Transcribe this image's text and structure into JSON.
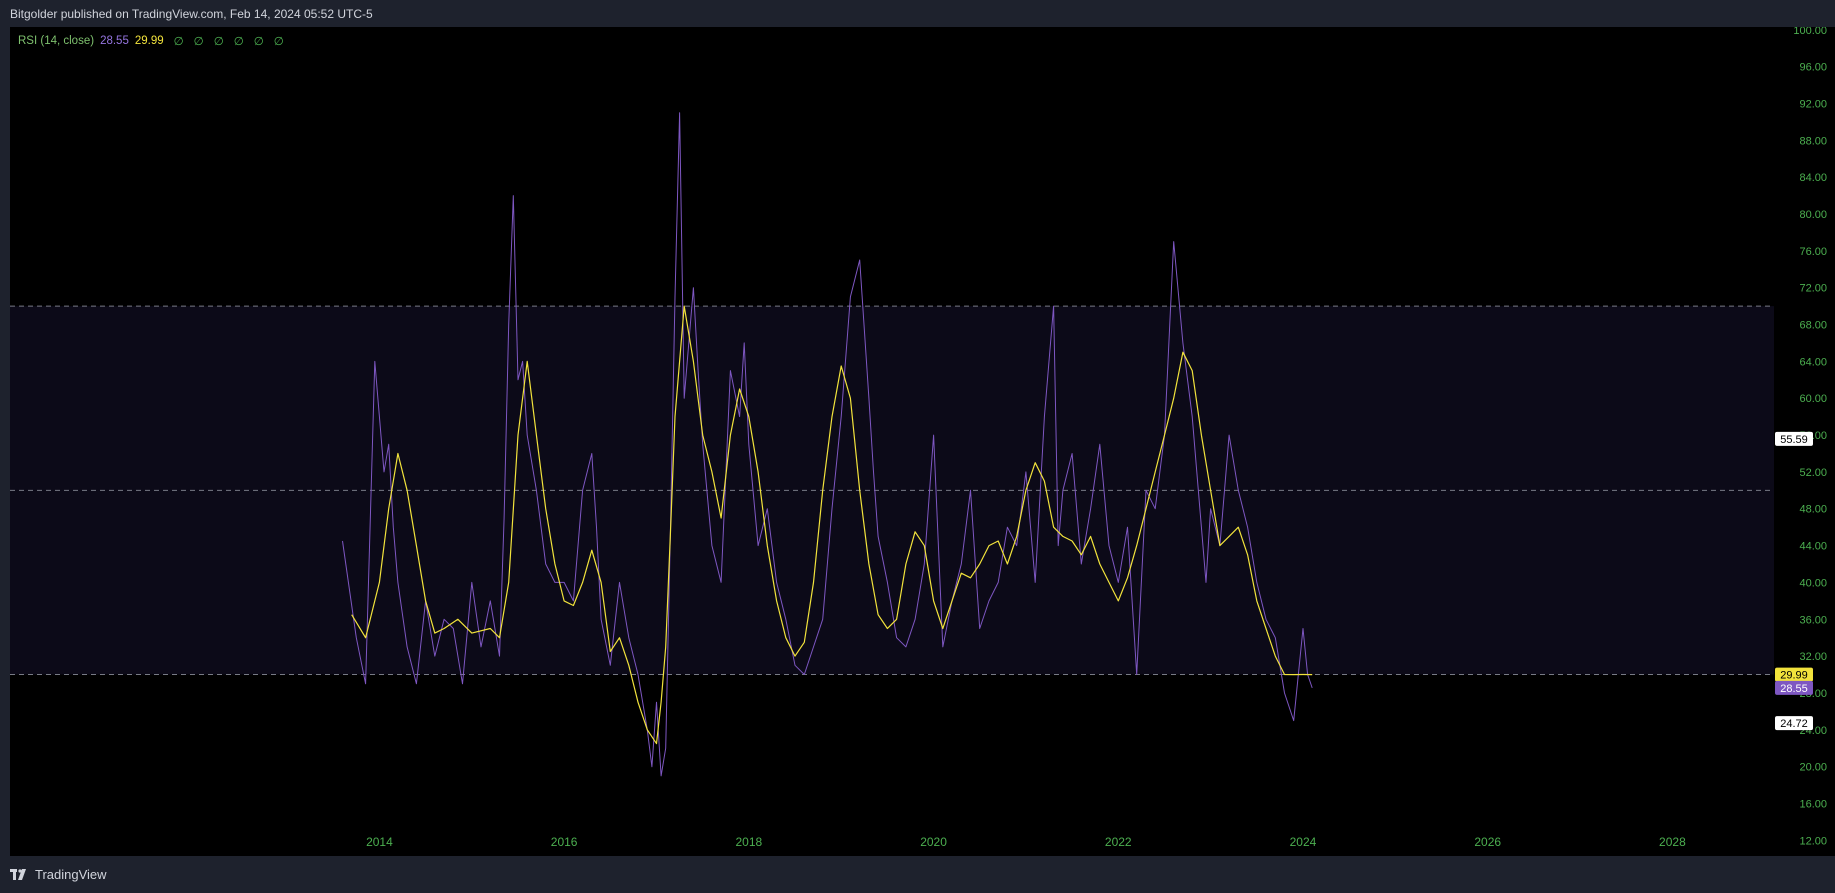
{
  "header": {
    "published_text": "Bitgolder published on TradingView.com, Feb 14, 2024 05:52 UTC-5"
  },
  "footer": {
    "brand": "TradingView"
  },
  "legend": {
    "indicator": "RSI (14, close)",
    "rsi_value": "28.55",
    "ma_value": "29.99",
    "na_markers": [
      "∅",
      "∅",
      "∅",
      "∅",
      "∅",
      "∅"
    ]
  },
  "colors": {
    "background": "#000000",
    "frame": "#1e222d",
    "rsi_line": "#7e57c2",
    "rsi_ma_line": "#f2e33c",
    "axis_text": "#4caf50",
    "band_fill": "#0c0a18",
    "level_line": "#787b86"
  },
  "price_labels": [
    {
      "text": "55.59",
      "value": 55.59,
      "bg": "#ffffff",
      "fg": "#000000"
    },
    {
      "text": "29.99",
      "value": 29.99,
      "bg": "#f2e33c",
      "fg": "#000000"
    },
    {
      "text": "28.55",
      "value": 28.55,
      "bg": "#7e57c2",
      "fg": "#ffffff"
    },
    {
      "text": "24.72",
      "value": 24.72,
      "bg": "#ffffff",
      "fg": "#000000"
    }
  ],
  "chart_data": {
    "type": "line",
    "title": "",
    "xlabel": "",
    "ylabel": "",
    "x_ticks": [
      "2014",
      "2016",
      "2018",
      "2020",
      "2022",
      "2024",
      "2026",
      "2028"
    ],
    "y_ticks": [
      "12.00",
      "16.00",
      "20.00",
      "24.00",
      "28.00",
      "32.00",
      "36.00",
      "40.00",
      "44.00",
      "48.00",
      "52.00",
      "56.00",
      "60.00",
      "64.00",
      "68.00",
      "72.00",
      "76.00",
      "80.00",
      "84.00",
      "88.00",
      "92.00",
      "96.00",
      "100.00"
    ],
    "xlim": [
      2010.0,
      2029.1
    ],
    "ylim": [
      10.3,
      100.3
    ],
    "levels": [
      70,
      50,
      30
    ],
    "band": [
      30,
      70
    ],
    "grid": false,
    "series": [
      {
        "key": "rsi",
        "x": [
          2013.6,
          2013.75,
          2013.85,
          2013.95,
          2014.0,
          2014.05,
          2014.1,
          2014.15,
          2014.2,
          2014.3,
          2014.4,
          2014.5,
          2014.6,
          2014.7,
          2014.8,
          2014.9,
          2015.0,
          2015.1,
          2015.2,
          2015.3,
          2015.35,
          2015.4,
          2015.45,
          2015.5,
          2015.55,
          2015.6,
          2015.7,
          2015.8,
          2015.9,
          2016.0,
          2016.1,
          2016.2,
          2016.3,
          2016.35,
          2016.4,
          2016.5,
          2016.6,
          2016.7,
          2016.8,
          2016.9,
          2016.95,
          2017.0,
          2017.05,
          2017.1,
          2017.15,
          2017.2,
          2017.25,
          2017.3,
          2017.35,
          2017.4,
          2017.45,
          2017.5,
          2017.6,
          2017.7,
          2017.8,
          2017.9,
          2017.95,
          2018.0,
          2018.1,
          2018.2,
          2018.3,
          2018.4,
          2018.5,
          2018.6,
          2018.7,
          2018.8,
          2018.9,
          2019.0,
          2019.1,
          2019.2,
          2019.3,
          2019.35,
          2019.4,
          2019.5,
          2019.6,
          2019.7,
          2019.8,
          2019.9,
          2020.0,
          2020.1,
          2020.2,
          2020.3,
          2020.4,
          2020.5,
          2020.6,
          2020.7,
          2020.8,
          2020.9,
          2021.0,
          2021.1,
          2021.2,
          2021.3,
          2021.35,
          2021.4,
          2021.5,
          2021.6,
          2021.7,
          2021.8,
          2021.9,
          2022.0,
          2022.1,
          2022.2,
          2022.3,
          2022.4,
          2022.5,
          2022.6,
          2022.7,
          2022.8,
          2022.85,
          2022.9,
          2022.95,
          2023.0,
          2023.1,
          2023.2,
          2023.3,
          2023.4,
          2023.5,
          2023.6,
          2023.7,
          2023.8,
          2023.9,
          2024.0,
          2024.05,
          2024.1
        ],
        "y": [
          44.5,
          34.0,
          29.0,
          64.0,
          58.0,
          52.0,
          55.0,
          46.0,
          40.0,
          33.0,
          29.0,
          38.0,
          32.0,
          36.0,
          35.0,
          29.0,
          40.0,
          33.0,
          38.0,
          32.0,
          47.0,
          68.0,
          82.0,
          62.0,
          64.0,
          56.0,
          50.0,
          42.0,
          40.0,
          40.0,
          38.0,
          50.0,
          54.0,
          46.0,
          36.0,
          31.0,
          40.0,
          34.0,
          30.0,
          24.0,
          20.0,
          27.0,
          19.0,
          22.0,
          45.0,
          71.0,
          91.0,
          60.0,
          66.0,
          72.0,
          63.0,
          55.0,
          44.0,
          40.0,
          63.0,
          58.0,
          66.0,
          55.0,
          44.0,
          48.0,
          40.0,
          36.0,
          31.0,
          30.0,
          33.0,
          36.0,
          48.0,
          58.0,
          71.0,
          75.0,
          60.0,
          52.0,
          45.0,
          40.0,
          34.0,
          33.0,
          36.0,
          42.0,
          56.0,
          33.0,
          38.0,
          42.0,
          50.0,
          35.0,
          38.0,
          40.0,
          46.0,
          44.0,
          52.0,
          40.0,
          58.0,
          70.0,
          44.0,
          50.0,
          54.0,
          42.0,
          48.0,
          55.0,
          44.0,
          40.0,
          46.0,
          30.0,
          50.0,
          48.0,
          56.0,
          77.0,
          66.0,
          58.0,
          52.0,
          46.0,
          40.0,
          48.0,
          44.0,
          56.0,
          50.0,
          46.0,
          40.0,
          36.0,
          34.0,
          28.0,
          25.0,
          35.0,
          30.0,
          28.55
        ]
      },
      {
        "key": "rsi_ma",
        "x": [
          2013.7,
          2013.85,
          2014.0,
          2014.1,
          2014.2,
          2014.3,
          2014.4,
          2014.5,
          2014.6,
          2014.7,
          2014.85,
          2015.0,
          2015.2,
          2015.3,
          2015.4,
          2015.5,
          2015.6,
          2015.7,
          2015.8,
          2015.9,
          2016.0,
          2016.1,
          2016.2,
          2016.3,
          2016.4,
          2016.5,
          2016.6,
          2016.7,
          2016.8,
          2016.9,
          2017.0,
          2017.05,
          2017.1,
          2017.15,
          2017.2,
          2017.3,
          2017.4,
          2017.5,
          2017.6,
          2017.7,
          2017.8,
          2017.9,
          2018.0,
          2018.1,
          2018.2,
          2018.3,
          2018.4,
          2018.5,
          2018.6,
          2018.7,
          2018.8,
          2018.9,
          2019.0,
          2019.1,
          2019.2,
          2019.3,
          2019.4,
          2019.5,
          2019.6,
          2019.7,
          2019.8,
          2019.9,
          2020.0,
          2020.1,
          2020.2,
          2020.3,
          2020.4,
          2020.5,
          2020.6,
          2020.7,
          2020.8,
          2020.9,
          2021.0,
          2021.1,
          2021.2,
          2021.3,
          2021.4,
          2021.5,
          2021.6,
          2021.7,
          2021.8,
          2021.9,
          2022.0,
          2022.1,
          2022.2,
          2022.3,
          2022.4,
          2022.5,
          2022.6,
          2022.7,
          2022.8,
          2022.9,
          2023.0,
          2023.1,
          2023.2,
          2023.3,
          2023.4,
          2023.5,
          2023.6,
          2023.7,
          2023.8,
          2023.9,
          2024.0,
          2024.1
        ],
        "y": [
          36.5,
          34.0,
          40.0,
          48.0,
          54.0,
          50.0,
          44.0,
          38.0,
          34.5,
          35.0,
          36.0,
          34.5,
          35.0,
          34.0,
          40.0,
          56.0,
          64.0,
          56.0,
          48.0,
          42.0,
          38.0,
          37.5,
          40.0,
          43.5,
          40.0,
          32.5,
          34.0,
          31.0,
          27.0,
          24.0,
          22.5,
          27.0,
          33.0,
          45.0,
          58.0,
          70.0,
          64.0,
          56.0,
          52.0,
          47.0,
          56.0,
          61.0,
          58.0,
          52.0,
          44.0,
          38.0,
          34.0,
          32.0,
          33.5,
          40.0,
          50.0,
          58.0,
          63.5,
          60.0,
          50.0,
          42.0,
          36.5,
          35.0,
          36.0,
          42.0,
          45.5,
          44.0,
          38.0,
          35.0,
          38.0,
          41.0,
          40.5,
          42.0,
          44.0,
          44.5,
          42.0,
          45.0,
          50.0,
          53.0,
          51.0,
          46.0,
          45.0,
          44.5,
          43.0,
          45.0,
          42.0,
          40.0,
          38.0,
          40.5,
          44.0,
          48.0,
          52.0,
          56.0,
          60.0,
          65.0,
          63.0,
          56.0,
          50.0,
          44.0,
          45.0,
          46.0,
          43.0,
          38.0,
          35.0,
          32.0,
          30.0,
          29.99,
          30.0,
          29.99
        ]
      }
    ]
  }
}
